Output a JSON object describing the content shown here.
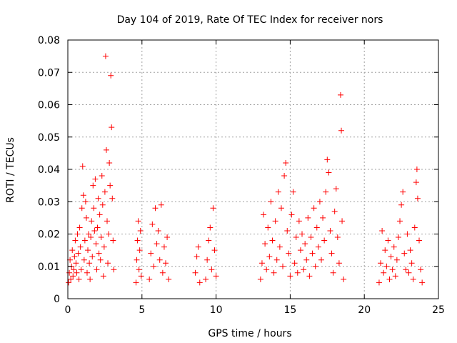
{
  "chart_data": {
    "type": "scatter",
    "title": "Day 104 of 2019, Rate Of TEC Index for receiver nors",
    "xlabel": "GPS time / hours",
    "ylabel": "ROTI / TECUs",
    "xlim": [
      0,
      25
    ],
    "ylim": [
      0,
      0.08
    ],
    "xticks": [
      0,
      5,
      10,
      15,
      20,
      25
    ],
    "xtick_labels": [
      "0",
      "5",
      "10",
      "15",
      "20",
      "25"
    ],
    "yticks": [
      0,
      0.01,
      0.02,
      0.03,
      0.04,
      0.05,
      0.06,
      0.07,
      0.08
    ],
    "ytick_labels": [
      "0",
      "0.01",
      "0.02",
      "0.03",
      "0.04",
      "0.05",
      "0.06",
      "0.07",
      "0.08"
    ],
    "grid": true,
    "marker": "plus",
    "series": [
      {
        "name": "ROTI",
        "color": "#ff0000",
        "points": [
          [
            0.05,
            0.005
          ],
          [
            0.1,
            0.008
          ],
          [
            0.15,
            0.012
          ],
          [
            0.2,
            0.006
          ],
          [
            0.25,
            0.01
          ],
          [
            0.3,
            0.015
          ],
          [
            0.35,
            0.007
          ],
          [
            0.4,
            0.009
          ],
          [
            0.45,
            0.013
          ],
          [
            0.5,
            0.018
          ],
          [
            0.55,
            0.011
          ],
          [
            0.6,
            0.008
          ],
          [
            0.65,
            0.02
          ],
          [
            0.7,
            0.014
          ],
          [
            0.75,
            0.006
          ],
          [
            0.8,
            0.022
          ],
          [
            0.85,
            0.016
          ],
          [
            0.9,
            0.009
          ],
          [
            0.95,
            0.028
          ],
          [
            1.0,
            0.041
          ],
          [
            1.05,
            0.032
          ],
          [
            1.1,
            0.012
          ],
          [
            1.15,
            0.018
          ],
          [
            1.2,
            0.03
          ],
          [
            1.25,
            0.025
          ],
          [
            1.3,
            0.008
          ],
          [
            1.35,
            0.015
          ],
          [
            1.4,
            0.02
          ],
          [
            1.45,
            0.011
          ],
          [
            1.5,
            0.006
          ],
          [
            1.55,
            0.019
          ],
          [
            1.6,
            0.024
          ],
          [
            1.65,
            0.013
          ],
          [
            1.7,
            0.035
          ],
          [
            1.75,
            0.028
          ],
          [
            1.8,
            0.021
          ],
          [
            1.85,
            0.037
          ],
          [
            1.9,
            0.017
          ],
          [
            1.95,
            0.009
          ],
          [
            2.0,
            0.022
          ],
          [
            2.05,
            0.031
          ],
          [
            2.1,
            0.014
          ],
          [
            2.15,
            0.026
          ],
          [
            2.2,
            0.012
          ],
          [
            2.25,
            0.019
          ],
          [
            2.3,
            0.038
          ],
          [
            2.35,
            0.029
          ],
          [
            2.4,
            0.007
          ],
          [
            2.45,
            0.016
          ],
          [
            2.5,
            0.033
          ],
          [
            2.55,
            0.075
          ],
          [
            2.6,
            0.046
          ],
          [
            2.65,
            0.024
          ],
          [
            2.7,
            0.011
          ],
          [
            2.75,
            0.02
          ],
          [
            2.8,
            0.042
          ],
          [
            2.85,
            0.035
          ],
          [
            2.9,
            0.069
          ],
          [
            2.95,
            0.053
          ],
          [
            3.0,
            0.031
          ],
          [
            3.05,
            0.018
          ],
          [
            3.1,
            0.009
          ],
          [
            4.6,
            0.005
          ],
          [
            4.65,
            0.012
          ],
          [
            4.7,
            0.018
          ],
          [
            4.75,
            0.024
          ],
          [
            4.8,
            0.009
          ],
          [
            4.85,
            0.015
          ],
          [
            4.9,
            0.021
          ],
          [
            4.95,
            0.007
          ],
          [
            5.5,
            0.006
          ],
          [
            5.6,
            0.014
          ],
          [
            5.7,
            0.023
          ],
          [
            5.8,
            0.01
          ],
          [
            5.9,
            0.028
          ],
          [
            6.0,
            0.017
          ],
          [
            6.1,
            0.021
          ],
          [
            6.2,
            0.012
          ],
          [
            6.3,
            0.029
          ],
          [
            6.4,
            0.008
          ],
          [
            6.5,
            0.016
          ],
          [
            6.6,
            0.011
          ],
          [
            6.7,
            0.019
          ],
          [
            6.8,
            0.006
          ],
          [
            8.6,
            0.008
          ],
          [
            8.7,
            0.013
          ],
          [
            8.8,
            0.016
          ],
          [
            8.9,
            0.005
          ],
          [
            9.3,
            0.006
          ],
          [
            9.4,
            0.012
          ],
          [
            9.5,
            0.018
          ],
          [
            9.6,
            0.022
          ],
          [
            9.7,
            0.009
          ],
          [
            9.8,
            0.028
          ],
          [
            9.9,
            0.015
          ],
          [
            10.0,
            0.007
          ],
          [
            13.0,
            0.006
          ],
          [
            13.1,
            0.011
          ],
          [
            13.2,
            0.026
          ],
          [
            13.3,
            0.017
          ],
          [
            13.4,
            0.009
          ],
          [
            13.5,
            0.022
          ],
          [
            13.6,
            0.013
          ],
          [
            13.7,
            0.03
          ],
          [
            13.8,
            0.018
          ],
          [
            13.9,
            0.008
          ],
          [
            14.0,
            0.024
          ],
          [
            14.1,
            0.012
          ],
          [
            14.2,
            0.033
          ],
          [
            14.3,
            0.016
          ],
          [
            14.4,
            0.028
          ],
          [
            14.5,
            0.01
          ],
          [
            14.6,
            0.038
          ],
          [
            14.7,
            0.042
          ],
          [
            14.8,
            0.021
          ],
          [
            14.9,
            0.014
          ],
          [
            15.0,
            0.007
          ],
          [
            15.1,
            0.026
          ],
          [
            15.2,
            0.033
          ],
          [
            15.3,
            0.011
          ],
          [
            15.4,
            0.019
          ],
          [
            15.5,
            0.008
          ],
          [
            15.6,
            0.024
          ],
          [
            15.7,
            0.015
          ],
          [
            15.8,
            0.02
          ],
          [
            15.9,
            0.009
          ],
          [
            16.0,
            0.017
          ],
          [
            16.1,
            0.012
          ],
          [
            16.2,
            0.025
          ],
          [
            16.3,
            0.007
          ],
          [
            16.4,
            0.019
          ],
          [
            16.5,
            0.014
          ],
          [
            16.6,
            0.028
          ],
          [
            16.7,
            0.01
          ],
          [
            16.8,
            0.022
          ],
          [
            16.9,
            0.016
          ],
          [
            17.0,
            0.03
          ],
          [
            17.1,
            0.012
          ],
          [
            17.2,
            0.025
          ],
          [
            17.3,
            0.018
          ],
          [
            17.4,
            0.033
          ],
          [
            17.5,
            0.043
          ],
          [
            17.6,
            0.039
          ],
          [
            17.7,
            0.021
          ],
          [
            17.8,
            0.014
          ],
          [
            17.9,
            0.008
          ],
          [
            18.0,
            0.027
          ],
          [
            18.1,
            0.034
          ],
          [
            18.2,
            0.019
          ],
          [
            18.3,
            0.011
          ],
          [
            18.4,
            0.063
          ],
          [
            18.45,
            0.052
          ],
          [
            18.5,
            0.024
          ],
          [
            18.6,
            0.006
          ],
          [
            21.0,
            0.005
          ],
          [
            21.1,
            0.011
          ],
          [
            21.2,
            0.021
          ],
          [
            21.3,
            0.008
          ],
          [
            21.4,
            0.015
          ],
          [
            21.5,
            0.01
          ],
          [
            21.6,
            0.018
          ],
          [
            21.7,
            0.006
          ],
          [
            21.8,
            0.013
          ],
          [
            21.9,
            0.009
          ],
          [
            22.0,
            0.016
          ],
          [
            22.1,
            0.007
          ],
          [
            22.2,
            0.012
          ],
          [
            22.3,
            0.019
          ],
          [
            22.4,
            0.024
          ],
          [
            22.5,
            0.029
          ],
          [
            22.6,
            0.033
          ],
          [
            22.7,
            0.014
          ],
          [
            22.8,
            0.009
          ],
          [
            22.9,
            0.02
          ],
          [
            23.0,
            0.008
          ],
          [
            23.1,
            0.015
          ],
          [
            23.2,
            0.011
          ],
          [
            23.3,
            0.006
          ],
          [
            23.4,
            0.022
          ],
          [
            23.5,
            0.036
          ],
          [
            23.55,
            0.04
          ],
          [
            23.6,
            0.031
          ],
          [
            23.7,
            0.018
          ],
          [
            23.8,
            0.009
          ],
          [
            23.9,
            0.005
          ]
        ]
      }
    ]
  }
}
